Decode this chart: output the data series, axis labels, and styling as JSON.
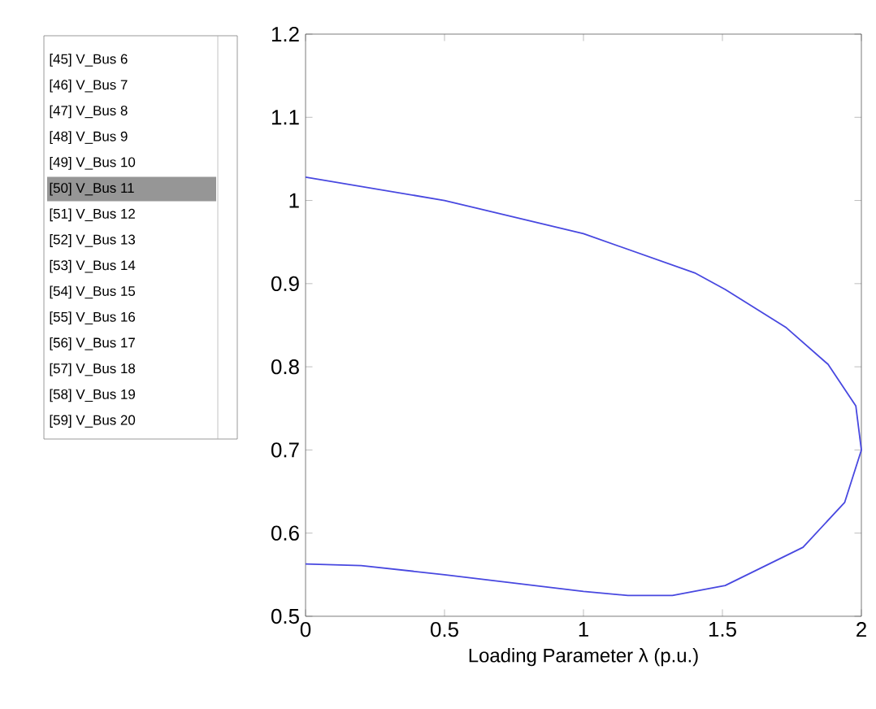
{
  "chart_data": {
    "type": "line",
    "xlabel": "Loading Parameter λ (p.u.)",
    "xlim": [
      0,
      2
    ],
    "ylim": [
      0.5,
      1.2
    ],
    "xticks": [
      0,
      0.5,
      1,
      1.5,
      2
    ],
    "yticks": [
      0.5,
      0.6,
      0.7,
      0.8,
      0.9,
      1,
      1.1,
      1.2
    ],
    "series": [
      {
        "color": "#4848e0",
        "x": [
          0,
          0.5,
          1.0,
          1.4,
          1.51,
          1.73,
          1.88,
          1.98,
          2.0,
          1.94,
          1.79,
          1.51,
          1.32,
          1.16,
          1.0,
          0.5,
          0.2,
          0
        ],
        "values": [
          1.028,
          1.0,
          0.96,
          0.913,
          0.893,
          0.847,
          0.803,
          0.753,
          0.7,
          0.637,
          0.583,
          0.537,
          0.525,
          0.525,
          0.53,
          0.55,
          0.561,
          0.563
        ]
      }
    ],
    "annotations": [
      "[45] V_Bus 6",
      "[46] V_Bus 7",
      "[47] V_Bus 8",
      "[48] V_Bus 9",
      "[49] V_Bus 10",
      "[50] V_Bus 11",
      "[51] V_Bus 12",
      "[52] V_Bus 13",
      "[53] V_Bus 14",
      "[54] V_Bus 15",
      "[55] V_Bus 16",
      "[56] V_Bus 17",
      "[57] V_Bus 18",
      "[58] V_Bus 19",
      "[59] V_Bus 20"
    ],
    "grid": false,
    "marker": "none",
    "line_style": "solid"
  }
}
